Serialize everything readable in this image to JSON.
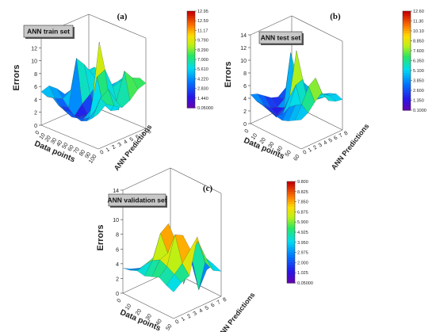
{
  "chart_data": [
    {
      "type": "surface3d",
      "panel_label": "(a)",
      "title": "ANN train set",
      "zlabel": "Errors",
      "xlabel": "Data points",
      "ylabel": "ANN Predictions",
      "z_ticks": [
        "0",
        "2",
        "4",
        "6",
        "8",
        "10",
        "12",
        "14"
      ],
      "x_ticks": [
        "0",
        "10",
        "20",
        "30",
        "40",
        "50",
        "60",
        "70",
        "80",
        "90",
        "100"
      ],
      "y_ticks": [
        "0",
        "1",
        "2",
        "3",
        "4",
        "5",
        "6",
        "7",
        "8"
      ],
      "colorbar_ticks": [
        "12.95",
        "12.59",
        "11.17",
        "9.790",
        "8.290",
        "7.000",
        "5.610",
        "4.220",
        "2.830",
        "1.440",
        "0.05000"
      ],
      "zlim": [
        0,
        14
      ],
      "grid": [
        [
          5.2,
          4.8,
          5.0,
          4.2,
          3.8,
          4.0,
          3.5,
          3.2,
          3.6,
          4.4,
          5.4
        ],
        [
          5.6,
          4.0,
          3.2,
          2.6,
          2.2,
          2.4,
          2.6,
          3.2,
          4.6,
          7.0,
          6.4
        ],
        [
          4.6,
          3.4,
          2.4,
          1.4,
          1.8,
          2.2,
          3.6,
          9.0,
          5.2,
          7.8,
          5.6
        ],
        [
          3.2,
          4.2,
          9.5,
          2.8,
          1.6,
          2.2,
          13.5,
          9.6,
          3.6,
          5.4,
          4.8
        ],
        [
          3.6,
          4.4,
          8.0,
          3.8,
          2.2,
          2.6,
          4.0,
          6.4,
          3.2,
          9.6,
          5.4
        ],
        [
          4.8,
          5.4,
          6.0,
          5.0,
          3.6,
          4.8,
          5.6,
          6.8,
          7.6,
          8.0,
          6.6
        ],
        [
          5.4,
          6.2,
          5.8,
          5.2,
          4.6,
          5.4,
          6.4,
          7.2,
          6.8,
          7.4,
          7.0
        ]
      ]
    },
    {
      "type": "surface3d",
      "panel_label": "(b)",
      "title": "ANN test set",
      "zlabel": "Errors",
      "xlabel": "Data points",
      "ylabel": "ANN Predictions",
      "z_ticks": [
        "0",
        "2",
        "4",
        "6",
        "8",
        "10",
        "12",
        "14"
      ],
      "x_ticks": [
        "0",
        "10",
        "20",
        "30",
        "40",
        "50",
        "60"
      ],
      "y_ticks": [
        "0",
        "1",
        "2",
        "3",
        "4",
        "5",
        "6",
        "7",
        "8"
      ],
      "colorbar_ticks": [
        "12.60",
        "11.30",
        "10.10",
        "8.850",
        "7.600",
        "6.350",
        "5.100",
        "3.850",
        "2.600",
        "1.350",
        "0.1000"
      ],
      "zlim": [
        0,
        14
      ],
      "grid": [
        [
          4.6,
          4.0,
          3.8,
          3.6,
          3.2,
          3.0,
          3.4,
          4.0,
          4.6
        ],
        [
          4.2,
          3.0,
          2.4,
          2.0,
          3.0,
          4.6,
          5.4,
          6.0,
          5.2
        ],
        [
          3.4,
          2.0,
          1.4,
          2.6,
          5.2,
          7.6,
          4.2,
          8.4,
          6.4
        ],
        [
          2.6,
          1.6,
          2.0,
          3.4,
          12.0,
          8.0,
          3.6,
          9.2,
          7.4
        ],
        [
          2.2,
          2.4,
          10.2,
          3.0,
          4.6,
          4.0,
          5.0,
          6.2,
          5.6
        ],
        [
          3.0,
          3.6,
          5.6,
          4.2,
          3.4,
          3.8,
          4.6,
          5.4,
          5.0
        ],
        [
          3.8,
          4.0,
          4.4,
          4.0,
          3.6,
          4.2,
          4.8,
          5.2,
          4.8
        ]
      ]
    },
    {
      "type": "surface3d",
      "panel_label": "(c)",
      "title": "ANN validation set",
      "zlabel": "Errors",
      "xlabel": "Data points",
      "ylabel": "ANN Predictions",
      "z_ticks": [
        "0",
        "2",
        "4",
        "6",
        "8",
        "10",
        "12",
        "14"
      ],
      "x_ticks": [
        "0",
        "10",
        "20",
        "30",
        "40",
        "50"
      ],
      "y_ticks": [
        "0",
        "1",
        "2",
        "3",
        "4",
        "5",
        "6",
        "7",
        "8"
      ],
      "colorbar_ticks": [
        "9.800",
        "8.825",
        "7.850",
        "6.875",
        "5.900",
        "4.925",
        "3.950",
        "2.975",
        "2.000",
        "1.025",
        "0.05000"
      ],
      "zlim": [
        0,
        14
      ],
      "grid": [
        [
          3.4,
          3.6,
          4.0,
          3.8,
          4.2,
          4.6,
          4.0,
          3.6
        ],
        [
          2.8,
          3.2,
          4.4,
          5.4,
          6.0,
          5.6,
          5.0,
          4.4
        ],
        [
          2.4,
          3.0,
          4.8,
          8.6,
          6.4,
          9.4,
          6.0,
          4.8
        ],
        [
          1.8,
          2.4,
          3.6,
          9.4,
          7.6,
          8.8,
          7.4,
          9.6
        ],
        [
          1.0,
          2.6,
          2.0,
          6.0,
          1.2,
          5.8,
          8.0,
          5.6
        ],
        [
          0.2,
          3.0,
          4.2,
          4.8,
          3.6,
          0.4,
          5.2,
          4.0
        ],
        [
          1.6,
          3.2,
          3.6,
          4.0,
          3.4,
          2.6,
          3.8,
          3.4
        ]
      ]
    }
  ]
}
